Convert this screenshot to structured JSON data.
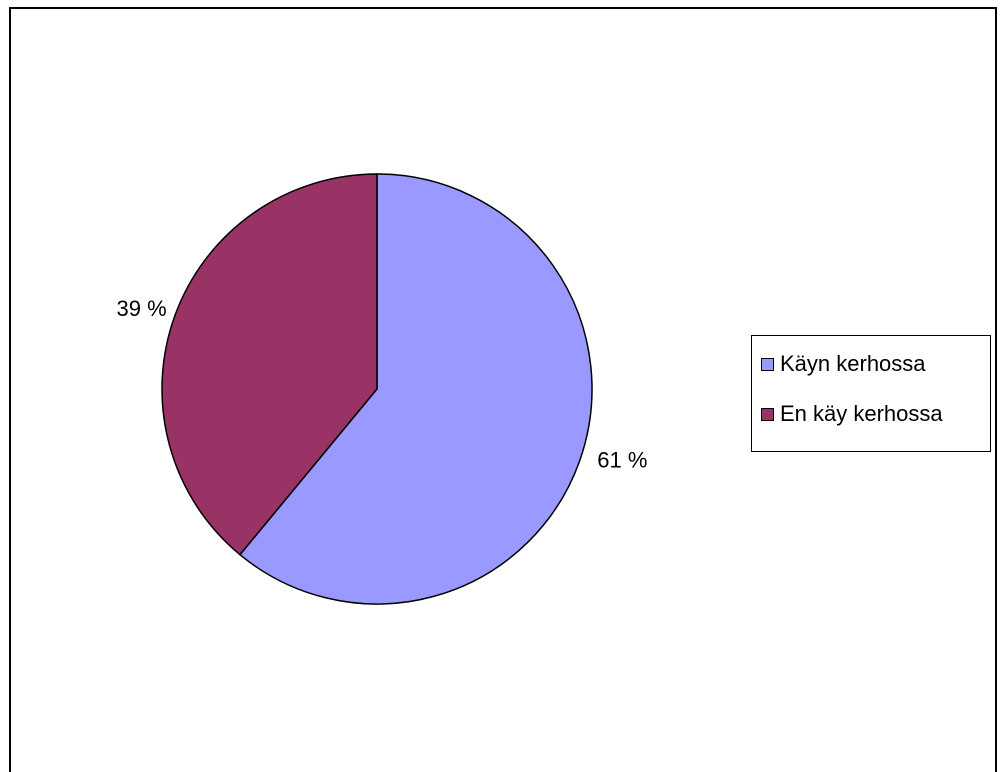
{
  "chart_data": {
    "type": "pie",
    "title": "",
    "categories": [
      "Käyn kerhossa",
      "En käy kerhossa"
    ],
    "values": [
      61,
      39
    ],
    "data_labels": [
      "61 %",
      "39 %"
    ],
    "colors": [
      "#9999ff",
      "#993366"
    ],
    "legend_position": "right"
  }
}
